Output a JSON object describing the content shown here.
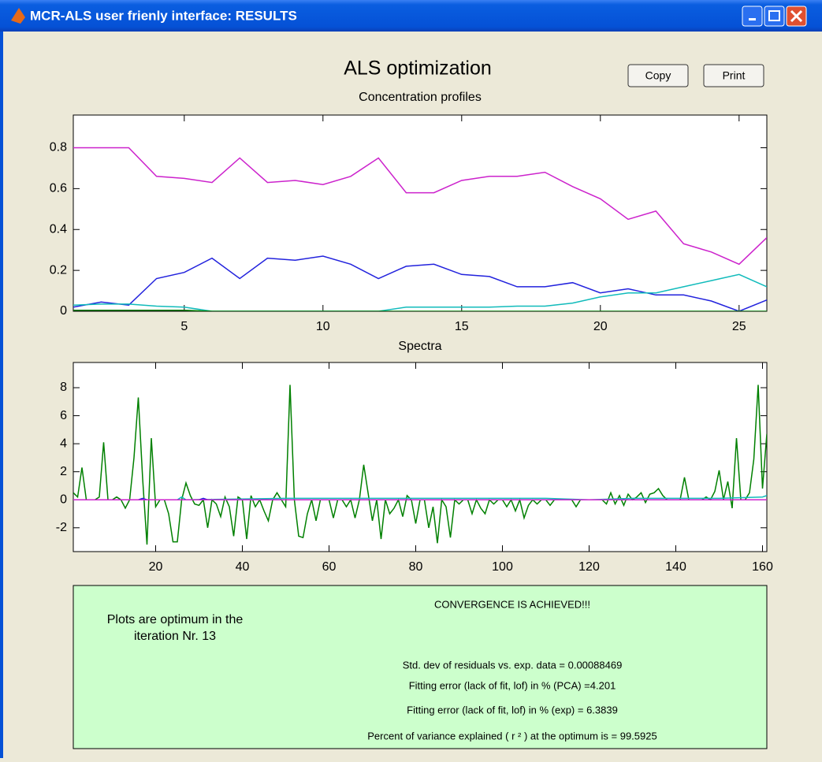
{
  "window": {
    "title": "MCR-ALS user frienly interface: RESULTS"
  },
  "header": {
    "title": "ALS optimization",
    "buttons": [
      "Copy",
      "Print"
    ]
  },
  "plots": [
    {
      "type": "line",
      "title": "Concentration profiles",
      "xlabel": "Spectra",
      "x": [
        1,
        2,
        3,
        4,
        5,
        6,
        7,
        8,
        9,
        10,
        11,
        12,
        13,
        14,
        15,
        16,
        17,
        18,
        19,
        20,
        21,
        22,
        23,
        24,
        25,
        26
      ],
      "xlim": [
        1,
        26
      ],
      "ylim": [
        0,
        0.96
      ],
      "xticks": [
        5,
        10,
        15,
        20,
        25
      ],
      "yticks": [
        0,
        0.2,
        0.4,
        0.6,
        0.8
      ],
      "series": [
        {
          "color": "#cc22cc",
          "values": [
            0.8,
            0.8,
            0.8,
            0.66,
            0.65,
            0.63,
            0.75,
            0.63,
            0.64,
            0.62,
            0.66,
            0.75,
            0.58,
            0.58,
            0.64,
            0.66,
            0.66,
            0.68,
            0.61,
            0.55,
            0.45,
            0.49,
            0.33,
            0.29,
            0.23,
            0.36
          ]
        },
        {
          "color": "#2222dd",
          "values": [
            0.02,
            0.045,
            0.03,
            0.16,
            0.19,
            0.26,
            0.16,
            0.26,
            0.25,
            0.27,
            0.23,
            0.16,
            0.22,
            0.23,
            0.18,
            0.17,
            0.12,
            0.12,
            0.14,
            0.09,
            0.11,
            0.08,
            0.08,
            0.05,
            0,
            0.055
          ]
        },
        {
          "color": "#11bbbb",
          "values": [
            0.03,
            0.035,
            0.035,
            0.025,
            0.02,
            0,
            0,
            0,
            0,
            0,
            0,
            0,
            0.02,
            0.02,
            0.02,
            0.02,
            0.025,
            0.025,
            0.04,
            0.07,
            0.09,
            0.09,
            0.12,
            0.15,
            0.18,
            0.12
          ]
        },
        {
          "color": "#008000",
          "values": [
            0.005,
            0.005,
            0.005,
            0.005,
            0.005,
            0,
            0,
            0,
            0,
            0,
            0,
            0,
            0,
            0,
            0,
            0,
            0,
            0,
            0,
            0,
            0,
            0,
            0,
            0,
            0,
            0
          ]
        }
      ]
    },
    {
      "type": "line",
      "xlim": [
        1,
        161
      ],
      "ylim": [
        -3.7,
        9.8
      ],
      "xticks": [
        20,
        40,
        60,
        80,
        100,
        120,
        140,
        160
      ],
      "yticks": [
        -2,
        0,
        2,
        4,
        6,
        8
      ],
      "series": [
        {
          "color": "#008000",
          "x": [
            1,
            2,
            3,
            4,
            5,
            6,
            7,
            8,
            9,
            10,
            11,
            12,
            13,
            14,
            15,
            16,
            17,
            18,
            19,
            20,
            21,
            22,
            23,
            24,
            25,
            26,
            27,
            28,
            29,
            30,
            31,
            32,
            33,
            34,
            35,
            36,
            37,
            38,
            39,
            40,
            41,
            42,
            43,
            44,
            45,
            46,
            47,
            48,
            49,
            50,
            51,
            52,
            53,
            54,
            55,
            56,
            57,
            58,
            59,
            60,
            61,
            62,
            63,
            64,
            65,
            66,
            67,
            68,
            69,
            70,
            71,
            72,
            73,
            74,
            75,
            76,
            77,
            78,
            79,
            80,
            81,
            82,
            83,
            84,
            85,
            86,
            87,
            88,
            89,
            90,
            91,
            92,
            93,
            94,
            95,
            96,
            97,
            98,
            99,
            100,
            101,
            102,
            103,
            104,
            105,
            106,
            107,
            108,
            109,
            110,
            111,
            112,
            113,
            114,
            115,
            116,
            117,
            118,
            119,
            120,
            121,
            122,
            123,
            124,
            125,
            126,
            127,
            128,
            129,
            130,
            131,
            132,
            133,
            134,
            135,
            136,
            137,
            138,
            139,
            140,
            141,
            142,
            143,
            144,
            145,
            146,
            147,
            148,
            149,
            150,
            151,
            152,
            153,
            154,
            155,
            156,
            157,
            158,
            159,
            160,
            161
          ],
          "values": [
            0.5,
            0.2,
            2.3,
            0,
            0,
            0,
            0.2,
            4.1,
            0,
            0,
            0.2,
            0,
            -0.6,
            0,
            3,
            7.3,
            1.5,
            -3.2,
            4.4,
            -0.5,
            0,
            0,
            -1,
            -3,
            -3,
            0,
            1.2,
            0.3,
            -0.3,
            -0.4,
            0,
            -2,
            0,
            -0.3,
            -1.2,
            0.2,
            -0.5,
            -2.6,
            0.2,
            0,
            -2.8,
            0.3,
            -0.5,
            0,
            -0.8,
            -1.5,
            0,
            0.5,
            0,
            -0.5,
            8.2,
            0,
            -2.6,
            -2.7,
            -1,
            0,
            -1.5,
            0,
            0,
            0,
            -1.3,
            0,
            0,
            -0.5,
            0,
            -1.3,
            0,
            2.5,
            0.5,
            -1.5,
            0,
            -2.8,
            0,
            -1,
            -0.6,
            0,
            -1.2,
            0.3,
            0,
            -1.7,
            0,
            0,
            -2,
            -0.5,
            -3.1,
            0,
            -0.5,
            -2.7,
            0,
            -0.3,
            0,
            0,
            -1,
            0,
            -0.6,
            -1,
            0,
            -0.3,
            0,
            0,
            -0.5,
            0,
            -0.8,
            0,
            -1.3,
            -0.4,
            0,
            -0.3,
            0,
            0,
            -0.4,
            0,
            0,
            0,
            0,
            0,
            -0.5,
            0,
            0,
            0,
            0,
            0,
            0,
            -0.3,
            0.5,
            -0.3,
            0.3,
            -0.4,
            0.4,
            0,
            0.2,
            0.5,
            -0.2,
            0.4,
            0.5,
            0.8,
            0.3,
            0,
            0,
            0,
            0,
            1.6,
            0,
            0,
            0,
            0,
            0.2,
            0,
            0.6,
            2.1,
            0,
            1.3,
            -0.6,
            4.4,
            0,
            0,
            0.5,
            2.9,
            8.2,
            0.8,
            4.7
          ]
        },
        {
          "color": "#11bbbb",
          "x": [
            1,
            25,
            26,
            27,
            50,
            60,
            70,
            80,
            90,
            100,
            110,
            120,
            130,
            140,
            150,
            160,
            161
          ],
          "values": [
            0,
            0,
            0.2,
            0,
            0.1,
            0.1,
            0.1,
            0.1,
            0.1,
            0.1,
            0.1,
            0,
            0.1,
            0.1,
            0.1,
            0.2,
            0.3
          ]
        },
        {
          "color": "#2222dd",
          "x": [
            1,
            16,
            17,
            18,
            30,
            31,
            32,
            100,
            101,
            161
          ],
          "values": [
            0,
            0,
            0.1,
            0,
            0,
            0.1,
            0,
            0,
            0,
            0
          ]
        },
        {
          "color": "#cc22cc",
          "x": [
            1,
            161
          ],
          "values": [
            0,
            0
          ]
        }
      ]
    }
  ],
  "info": {
    "left": [
      "Plots are optimum in the",
      "iteration Nr.  13"
    ],
    "heading": "CONVERGENCE IS ACHIEVED!!!",
    "lines": [
      "Std. dev of residuals vs. exp. data = 0.00088469",
      "Fitting error (lack of fit, lof) in % (PCA) =4.201",
      "Fitting error (lack of fit, lof) in % (exp) = 6.3839",
      "Percent of variance explained ( r ² ) at the optimum is = 99.5925"
    ]
  }
}
